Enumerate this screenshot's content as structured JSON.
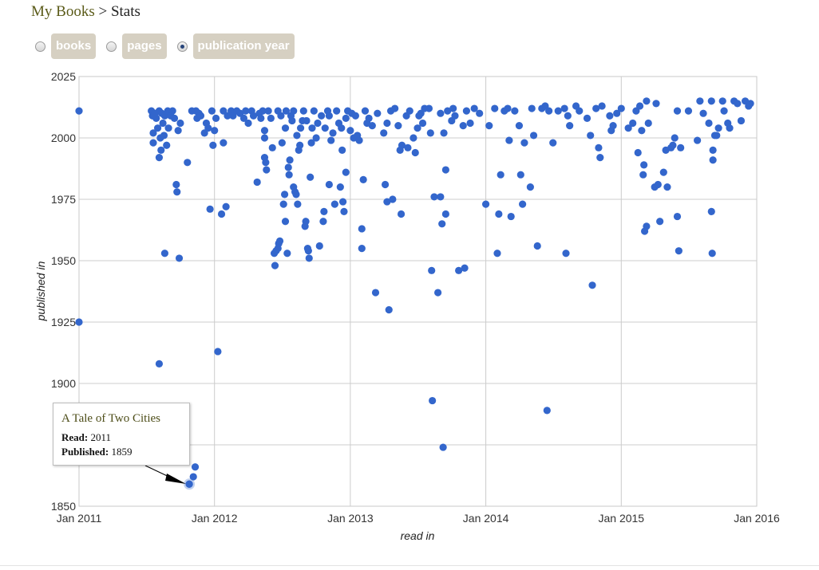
{
  "breadcrumb": {
    "root": "My Books",
    "separator": ">",
    "current": "Stats"
  },
  "toggles": [
    {
      "label": "books",
      "selected": false
    },
    {
      "label": "pages",
      "selected": false
    },
    {
      "label": "publication year",
      "selected": true
    }
  ],
  "tooltip": {
    "title": "A Tale of Two Cities",
    "read_label": "Read:",
    "read_value": "2011",
    "published_label": "Published:",
    "published_value": "1859"
  },
  "chart_data": {
    "type": "scatter",
    "xlabel": "read in",
    "ylabel": "published in",
    "xlim": [
      "2011-01-01",
      "2016-01-01"
    ],
    "ylim": [
      1850,
      2025
    ],
    "x_ticks": [
      "Jan 2011",
      "Jan 2012",
      "Jan 2013",
      "Jan 2014",
      "Jan 2015",
      "Jan 2016"
    ],
    "y_ticks": [
      "2025",
      "2000",
      "1975",
      "1950",
      "1925",
      "1900",
      "1850"
    ],
    "grid": true,
    "point_color": "#3366cc",
    "highlighted_point": {
      "x": "2011-10-25",
      "y": 1859
    },
    "points": [
      [
        "2011-01-01",
        2011
      ],
      [
        "2011-01-01",
        1925
      ],
      [
        "2011-07-15",
        2011
      ],
      [
        "2011-07-18",
        2009
      ],
      [
        "2011-07-20",
        2002
      ],
      [
        "2011-07-20",
        1998
      ],
      [
        "2011-07-25",
        2010
      ],
      [
        "2011-07-28",
        2008
      ],
      [
        "2011-08-01",
        2004
      ],
      [
        "2011-08-05",
        1908
      ],
      [
        "2011-08-05",
        2011
      ],
      [
        "2011-08-05",
        1992
      ],
      [
        "2011-08-08",
        2000
      ],
      [
        "2011-08-10",
        1995
      ],
      [
        "2011-08-12",
        2010
      ],
      [
        "2011-08-15",
        2006
      ],
      [
        "2011-08-18",
        2001
      ],
      [
        "2011-08-20",
        2009
      ],
      [
        "2011-08-20",
        1953
      ],
      [
        "2011-08-25",
        1997
      ],
      [
        "2011-08-28",
        2011
      ],
      [
        "2011-08-30",
        2004
      ],
      [
        "2011-09-05",
        2009
      ],
      [
        "2011-09-10",
        2011
      ],
      [
        "2011-09-15",
        2008
      ],
      [
        "2011-09-20",
        1981
      ],
      [
        "2011-09-22",
        1978
      ],
      [
        "2011-09-25",
        2003
      ],
      [
        "2011-09-28",
        1951
      ],
      [
        "2011-10-01",
        2006
      ],
      [
        "2011-10-20",
        1990
      ],
      [
        "2011-10-25",
        1859
      ],
      [
        "2011-11-01",
        2011
      ],
      [
        "2011-11-05",
        1862
      ],
      [
        "2011-11-10",
        1866
      ],
      [
        "2011-11-12",
        2011
      ],
      [
        "2011-11-15",
        2008
      ],
      [
        "2011-11-20",
        2010
      ],
      [
        "2011-11-25",
        2009
      ],
      [
        "2011-12-05",
        2002
      ],
      [
        "2011-12-10",
        2006
      ],
      [
        "2011-12-15",
        2004
      ],
      [
        "2011-12-20",
        1971
      ],
      [
        "2011-12-25",
        2011
      ],
      [
        "2011-12-28",
        1997
      ],
      [
        "2012-01-01",
        2003
      ],
      [
        "2012-01-05",
        2008
      ],
      [
        "2012-01-10",
        1913
      ],
      [
        "2012-01-20",
        1969
      ],
      [
        "2012-01-25",
        1998
      ],
      [
        "2012-01-25",
        2011
      ],
      [
        "2012-02-01",
        1972
      ],
      [
        "2012-02-05",
        2009
      ],
      [
        "2012-02-15",
        2011
      ],
      [
        "2012-02-20",
        2009
      ],
      [
        "2012-03-01",
        2011
      ],
      [
        "2012-03-10",
        2010
      ],
      [
        "2012-03-20",
        2008
      ],
      [
        "2012-03-25",
        2011
      ],
      [
        "2012-04-01",
        2006
      ],
      [
        "2012-04-10",
        2011
      ],
      [
        "2012-04-15",
        2009
      ],
      [
        "2012-04-25",
        1982
      ],
      [
        "2012-05-01",
        2010
      ],
      [
        "2012-05-05",
        2008
      ],
      [
        "2012-05-10",
        2011
      ],
      [
        "2012-05-15",
        2003
      ],
      [
        "2012-05-15",
        2000
      ],
      [
        "2012-05-15",
        1992
      ],
      [
        "2012-05-18",
        1990
      ],
      [
        "2012-05-20",
        1987
      ],
      [
        "2012-05-25",
        2011
      ],
      [
        "2012-06-01",
        2008
      ],
      [
        "2012-06-05",
        1996
      ],
      [
        "2012-06-10",
        1953
      ],
      [
        "2012-06-12",
        1948
      ],
      [
        "2012-06-15",
        1954
      ],
      [
        "2012-06-20",
        2011
      ],
      [
        "2012-06-20",
        1955
      ],
      [
        "2012-06-22",
        1957
      ],
      [
        "2012-06-25",
        1958
      ],
      [
        "2012-06-28",
        2009
      ],
      [
        "2012-07-01",
        1998
      ],
      [
        "2012-07-05",
        1973
      ],
      [
        "2012-07-08",
        1977
      ],
      [
        "2012-07-10",
        1966
      ],
      [
        "2012-07-10",
        2004
      ],
      [
        "2012-07-12",
        2011
      ],
      [
        "2012-07-15",
        1953
      ],
      [
        "2012-07-18",
        1988
      ],
      [
        "2012-07-20",
        1985
      ],
      [
        "2012-07-22",
        1991
      ],
      [
        "2012-07-25",
        2009
      ],
      [
        "2012-07-28",
        2007
      ],
      [
        "2012-08-01",
        2011
      ],
      [
        "2012-08-01",
        1980
      ],
      [
        "2012-08-05",
        1978
      ],
      [
        "2012-08-08",
        1977
      ],
      [
        "2012-08-10",
        2001
      ],
      [
        "2012-08-12",
        1973
      ],
      [
        "2012-08-15",
        1995
      ],
      [
        "2012-08-18",
        1997
      ],
      [
        "2012-08-20",
        2004
      ],
      [
        "2012-08-25",
        2007
      ],
      [
        "2012-08-28",
        2011
      ],
      [
        "2012-09-01",
        1964
      ],
      [
        "2012-09-03",
        1966
      ],
      [
        "2012-09-05",
        2007
      ],
      [
        "2012-09-08",
        1955
      ],
      [
        "2012-09-10",
        1954
      ],
      [
        "2012-09-12",
        1951
      ],
      [
        "2012-09-15",
        1984
      ],
      [
        "2012-09-18",
        1998
      ],
      [
        "2012-09-20",
        2004
      ],
      [
        "2012-09-25",
        2011
      ],
      [
        "2012-10-01",
        2000
      ],
      [
        "2012-10-05",
        2006
      ],
      [
        "2012-10-10",
        1956
      ],
      [
        "2012-10-15",
        2009
      ],
      [
        "2012-10-20",
        1966
      ],
      [
        "2012-10-22",
        1970
      ],
      [
        "2012-10-25",
        2004
      ],
      [
        "2012-11-01",
        2011
      ],
      [
        "2012-11-05",
        2009
      ],
      [
        "2012-11-05",
        1981
      ],
      [
        "2012-11-10",
        1999
      ],
      [
        "2012-11-15",
        2002
      ],
      [
        "2012-11-20",
        1973
      ],
      [
        "2012-11-25",
        2011
      ],
      [
        "2012-12-01",
        2006
      ],
      [
        "2012-12-05",
        1980
      ],
      [
        "2012-12-08",
        2004
      ],
      [
        "2012-12-10",
        1995
      ],
      [
        "2012-12-12",
        1974
      ],
      [
        "2012-12-15",
        1970
      ],
      [
        "2012-12-20",
        1986
      ],
      [
        "2012-12-20",
        2008
      ],
      [
        "2012-12-25",
        2011
      ],
      [
        "2013-01-01",
        2003
      ],
      [
        "2013-01-05",
        2010
      ],
      [
        "2013-01-10",
        2000
      ],
      [
        "2013-01-15",
        2009
      ],
      [
        "2013-01-20",
        2001
      ],
      [
        "2013-01-25",
        1999
      ],
      [
        "2013-02-01",
        1955
      ],
      [
        "2013-02-01",
        1963
      ],
      [
        "2013-02-05",
        1983
      ],
      [
        "2013-02-10",
        2011
      ],
      [
        "2013-02-15",
        2006
      ],
      [
        "2013-02-20",
        2008
      ],
      [
        "2013-03-01",
        2005
      ],
      [
        "2013-03-10",
        1937
      ],
      [
        "2013-03-15",
        2010
      ],
      [
        "2013-04-01",
        2002
      ],
      [
        "2013-04-05",
        1981
      ],
      [
        "2013-04-10",
        2006
      ],
      [
        "2013-04-10",
        1974
      ],
      [
        "2013-04-15",
        1930
      ],
      [
        "2013-04-20",
        2011
      ],
      [
        "2013-04-25",
        1975
      ],
      [
        "2013-05-01",
        2012
      ],
      [
        "2013-05-10",
        2005
      ],
      [
        "2013-05-15",
        1995
      ],
      [
        "2013-05-18",
        1969
      ],
      [
        "2013-05-20",
        1997
      ],
      [
        "2013-06-01",
        2009
      ],
      [
        "2013-06-05",
        1996
      ],
      [
        "2013-06-10",
        2011
      ],
      [
        "2013-06-20",
        2000
      ],
      [
        "2013-06-25",
        1994
      ],
      [
        "2013-07-01",
        2004
      ],
      [
        "2013-07-05",
        2009
      ],
      [
        "2013-07-10",
        2010
      ],
      [
        "2013-07-15",
        2006
      ],
      [
        "2013-07-20",
        2012
      ],
      [
        "2013-08-01",
        2012
      ],
      [
        "2013-08-05",
        2002
      ],
      [
        "2013-08-08",
        1946
      ],
      [
        "2013-08-10",
        1893
      ],
      [
        "2013-08-15",
        1976
      ],
      [
        "2013-08-25",
        1937
      ],
      [
        "2013-09-01",
        1976
      ],
      [
        "2013-09-01",
        2010
      ],
      [
        "2013-09-05",
        1965
      ],
      [
        "2013-09-08",
        1874
      ],
      [
        "2013-09-10",
        2002
      ],
      [
        "2013-09-15",
        1987
      ],
      [
        "2013-09-15",
        1969
      ],
      [
        "2013-09-20",
        2011
      ],
      [
        "2013-10-01",
        2007
      ],
      [
        "2013-10-05",
        2012
      ],
      [
        "2013-10-10",
        2009
      ],
      [
        "2013-10-20",
        1946
      ],
      [
        "2013-11-01",
        2005
      ],
      [
        "2013-11-05",
        1947
      ],
      [
        "2013-11-10",
        2011
      ],
      [
        "2013-11-20",
        2006
      ],
      [
        "2013-12-01",
        2012
      ],
      [
        "2013-12-15",
        2010
      ],
      [
        "2014-01-01",
        1973
      ],
      [
        "2014-01-10",
        2005
      ],
      [
        "2014-01-25",
        2012
      ],
      [
        "2014-02-01",
        1953
      ],
      [
        "2014-02-05",
        1969
      ],
      [
        "2014-02-10",
        1985
      ],
      [
        "2014-02-20",
        2011
      ],
      [
        "2014-03-01",
        2012
      ],
      [
        "2014-03-05",
        1999
      ],
      [
        "2014-03-10",
        1968
      ],
      [
        "2014-03-20",
        2011
      ],
      [
        "2014-04-01",
        2005
      ],
      [
        "2014-04-05",
        1985
      ],
      [
        "2014-04-10",
        1973
      ],
      [
        "2014-04-15",
        1998
      ],
      [
        "2014-05-01",
        1980
      ],
      [
        "2014-05-05",
        2012
      ],
      [
        "2014-05-10",
        2001
      ],
      [
        "2014-05-20",
        1956
      ],
      [
        "2014-06-01",
        2012
      ],
      [
        "2014-06-10",
        2013
      ],
      [
        "2014-06-15",
        1889
      ],
      [
        "2014-06-20",
        2011
      ],
      [
        "2014-07-01",
        1998
      ],
      [
        "2014-07-15",
        2011
      ],
      [
        "2014-08-01",
        2012
      ],
      [
        "2014-08-05",
        1953
      ],
      [
        "2014-08-10",
        2009
      ],
      [
        "2014-08-15",
        2005
      ],
      [
        "2014-09-01",
        2013
      ],
      [
        "2014-09-10",
        2011
      ],
      [
        "2014-10-01",
        2008
      ],
      [
        "2014-10-10",
        2001
      ],
      [
        "2014-10-15",
        1940
      ],
      [
        "2014-10-25",
        2012
      ],
      [
        "2014-11-01",
        1996
      ],
      [
        "2014-11-05",
        1992
      ],
      [
        "2014-11-10",
        2013
      ],
      [
        "2014-12-01",
        2009
      ],
      [
        "2014-12-05",
        2003
      ],
      [
        "2014-12-10",
        2005
      ],
      [
        "2014-12-20",
        2010
      ],
      [
        "2015-01-01",
        2012
      ],
      [
        "2015-01-20",
        2004
      ],
      [
        "2015-02-01",
        2006
      ],
      [
        "2015-02-10",
        2011
      ],
      [
        "2015-02-15",
        1994
      ],
      [
        "2015-02-20",
        2013
      ],
      [
        "2015-02-25",
        2003
      ],
      [
        "2015-03-01",
        1985
      ],
      [
        "2015-03-03",
        1989
      ],
      [
        "2015-03-05",
        1962
      ],
      [
        "2015-03-10",
        1964
      ],
      [
        "2015-03-10",
        2015
      ],
      [
        "2015-03-15",
        2006
      ],
      [
        "2015-04-01",
        1980
      ],
      [
        "2015-04-05",
        2014
      ],
      [
        "2015-04-10",
        1981
      ],
      [
        "2015-04-15",
        1966
      ],
      [
        "2015-04-25",
        1986
      ],
      [
        "2015-05-01",
        1995
      ],
      [
        "2015-05-05",
        1980
      ],
      [
        "2015-05-15",
        1996
      ],
      [
        "2015-05-20",
        1997
      ],
      [
        "2015-05-25",
        2000
      ],
      [
        "2015-06-01",
        1968
      ],
      [
        "2015-06-01",
        2011
      ],
      [
        "2015-06-05",
        1954
      ],
      [
        "2015-06-10",
        1996
      ],
      [
        "2015-07-01",
        2011
      ],
      [
        "2015-07-25",
        1999
      ],
      [
        "2015-08-01",
        2015
      ],
      [
        "2015-08-10",
        2010
      ],
      [
        "2015-08-25",
        2006
      ],
      [
        "2015-09-01",
        2015
      ],
      [
        "2015-09-01",
        1970
      ],
      [
        "2015-09-03",
        1953
      ],
      [
        "2015-09-05",
        1995
      ],
      [
        "2015-09-05",
        1991
      ],
      [
        "2015-09-10",
        2001
      ],
      [
        "2015-09-15",
        2001
      ],
      [
        "2015-09-20",
        2004
      ],
      [
        "2015-10-01",
        2015
      ],
      [
        "2015-10-05",
        2011
      ],
      [
        "2015-10-15",
        2006
      ],
      [
        "2015-10-20",
        2004
      ],
      [
        "2015-11-01",
        2015
      ],
      [
        "2015-11-10",
        2014
      ],
      [
        "2015-11-20",
        2007
      ],
      [
        "2015-12-01",
        2015
      ],
      [
        "2015-12-10",
        2013
      ],
      [
        "2015-12-15",
        2014
      ]
    ]
  }
}
